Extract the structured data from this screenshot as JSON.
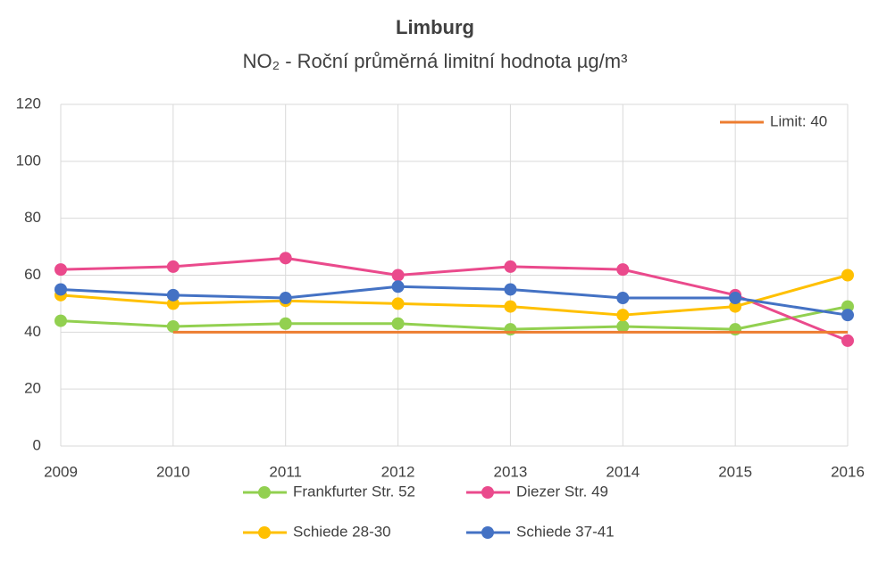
{
  "chart_data": {
    "type": "line",
    "title": "Limburg",
    "subtitle": "NO₂ - Roční průměrná limitní hodnota µg/m³",
    "categories": [
      "2009",
      "2010",
      "2011",
      "2012",
      "2013",
      "2014",
      "2015",
      "2016"
    ],
    "series": [
      {
        "name": "Frankfurter Str. 52",
        "color": "#92d050",
        "values": [
          44,
          42,
          43,
          43,
          41,
          42,
          41,
          49
        ]
      },
      {
        "name": "Diezer Str. 49",
        "color": "#ea4a8c",
        "values": [
          62,
          63,
          66,
          60,
          63,
          62,
          53,
          37
        ]
      },
      {
        "name": "Schiede 28-30",
        "color": "#ffc000",
        "values": [
          53,
          50,
          51,
          50,
          49,
          46,
          49,
          60
        ]
      },
      {
        "name": "Schiede 37-41",
        "color": "#4472c4",
        "values": [
          55,
          53,
          52,
          56,
          55,
          52,
          52,
          46
        ]
      },
      {
        "name": "Limit: 40",
        "color": "#ed7d31",
        "marker": false,
        "values": [
          null,
          40,
          40,
          40,
          40,
          40,
          40,
          40
        ]
      }
    ],
    "ylim": [
      0,
      120
    ],
    "yticks": [
      0,
      20,
      40,
      60,
      80,
      100,
      120
    ],
    "grid": true
  }
}
